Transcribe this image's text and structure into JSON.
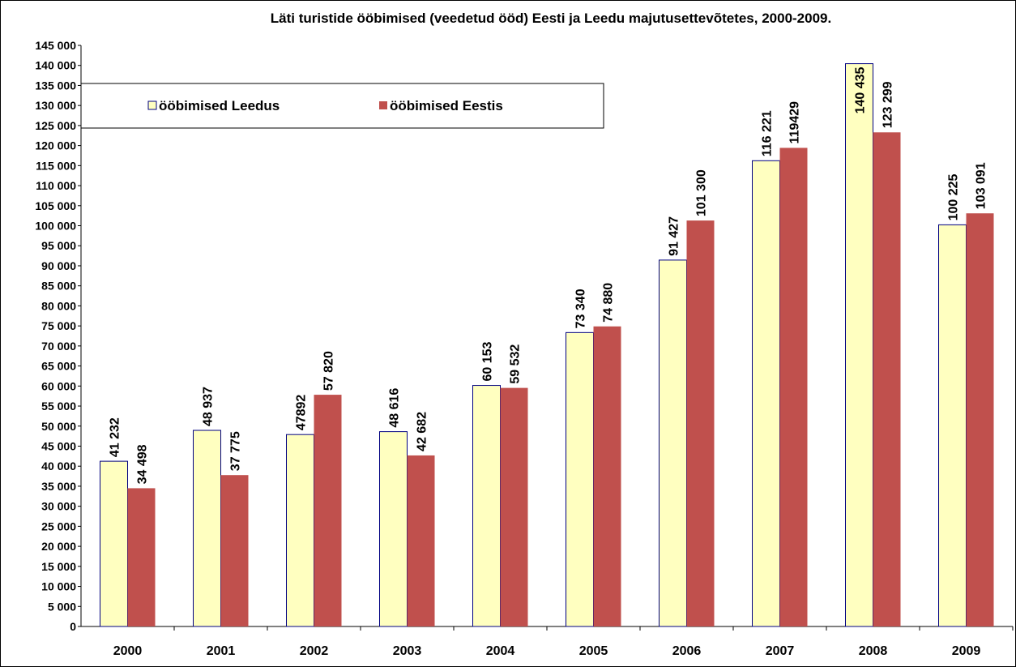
{
  "chart_data": {
    "type": "bar",
    "title": "Läti turistide ööbimised (veedetud ööd) Eesti ja Leedu majutusettevõtetes, 2000-2009.",
    "categories": [
      "2000",
      "2001",
      "2002",
      "2003",
      "2004",
      "2005",
      "2006",
      "2007",
      "2008",
      "2009"
    ],
    "series": [
      {
        "name": "ööbimised Leedus",
        "color": "#ffffc0",
        "values": [
          41232,
          48937,
          47892,
          48616,
          60153,
          73340,
          91427,
          116221,
          140435,
          100225
        ],
        "value_labels": [
          "41 232",
          "48 937",
          "47892",
          "48 616",
          "60 153",
          "73 340",
          "91 427",
          "116 221",
          "140 435",
          "100 225"
        ]
      },
      {
        "name": "ööbimised Eestis",
        "color": "#c0504d",
        "values": [
          34498,
          37775,
          57820,
          42682,
          59532,
          74880,
          101300,
          119429,
          123299,
          103091
        ],
        "value_labels": [
          "34 498",
          "37 775",
          "57 820",
          "42 682",
          "59 532",
          "74 880",
          "101 300",
          "119429",
          "123 299",
          "103 091"
        ]
      }
    ],
    "ylim": [
      0,
      145000
    ],
    "yticks": [
      0,
      {
        "value": 5000,
        "label": "5 000"
      },
      {
        "value": 10000,
        "label": "10 000"
      },
      {
        "value": 15000,
        "label": "15 000"
      },
      {
        "value": 20000,
        "label": "20 000"
      },
      {
        "value": 25000,
        "label": "25 000"
      },
      {
        "value": 30000,
        "label": "30 000"
      },
      {
        "value": 35000,
        "label": "35 000"
      },
      {
        "value": 40000,
        "label": "40 000"
      },
      {
        "value": 45000,
        "label": "45 000"
      },
      {
        "value": 50000,
        "label": "50 000"
      },
      {
        "value": 55000,
        "label": "55 000"
      },
      {
        "value": 60000,
        "label": "60 000"
      },
      {
        "value": 65000,
        "label": "65 000"
      },
      {
        "value": 70000,
        "label": "70 000"
      },
      {
        "value": 75000,
        "label": "75 000"
      },
      {
        "value": 80000,
        "label": "80 000"
      },
      {
        "value": 85000,
        "label": "85 000"
      },
      {
        "value": 90000,
        "label": "90 000"
      },
      {
        "value": 95000,
        "label": "95 000"
      },
      {
        "value": 100000,
        "label": "100 000"
      },
      {
        "value": 105000,
        "label": "105 000"
      },
      {
        "value": 110000,
        "label": "110 000"
      },
      {
        "value": 115000,
        "label": "115 000"
      },
      {
        "value": 120000,
        "label": "120 000"
      },
      {
        "value": 125000,
        "label": "125 000"
      },
      {
        "value": 130000,
        "label": "130 000"
      },
      {
        "value": 135000,
        "label": "135 000"
      },
      {
        "value": 140000,
        "label": "140 000"
      },
      {
        "value": 145000,
        "label": "145 000"
      }
    ],
    "bar_stroke": "#000080"
  }
}
